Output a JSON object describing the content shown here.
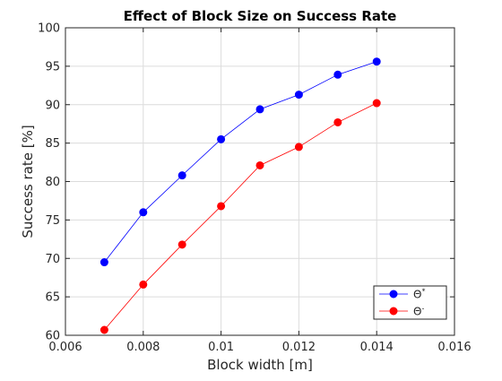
{
  "chart_data": {
    "type": "line",
    "title": "Effect of Block Size on Success Rate",
    "xlabel": "Block width [m]",
    "ylabel": "Success rate [%]",
    "xlim": [
      0.006,
      0.016
    ],
    "ylim": [
      60,
      100
    ],
    "xticks": [
      0.006,
      0.008,
      0.01,
      0.012,
      0.014,
      0.016
    ],
    "xtick_labels": [
      "0.006",
      "0.008",
      "0.01",
      "0.012",
      "0.014",
      "0.016"
    ],
    "yticks": [
      60,
      65,
      70,
      75,
      80,
      85,
      90,
      95,
      100
    ],
    "ytick_labels": [
      "60",
      "65",
      "70",
      "75",
      "80",
      "85",
      "90",
      "95",
      "100"
    ],
    "grid": true,
    "legend_position": "bottom-right",
    "x": [
      0.007,
      0.008,
      0.009,
      0.01,
      0.011,
      0.012,
      0.013,
      0.014
    ],
    "series": [
      {
        "name": "Θ*",
        "name_base": "Θ",
        "name_sup": "*",
        "color": "#0000ff",
        "values": [
          69.5,
          76.0,
          80.8,
          85.5,
          89.4,
          91.3,
          93.9,
          95.6
        ]
      },
      {
        "name": "Θ-",
        "name_base": "Θ",
        "name_sup": "-",
        "color": "#ff0000",
        "values": [
          60.7,
          66.6,
          71.8,
          76.8,
          82.1,
          84.5,
          87.7,
          90.2
        ]
      }
    ]
  }
}
